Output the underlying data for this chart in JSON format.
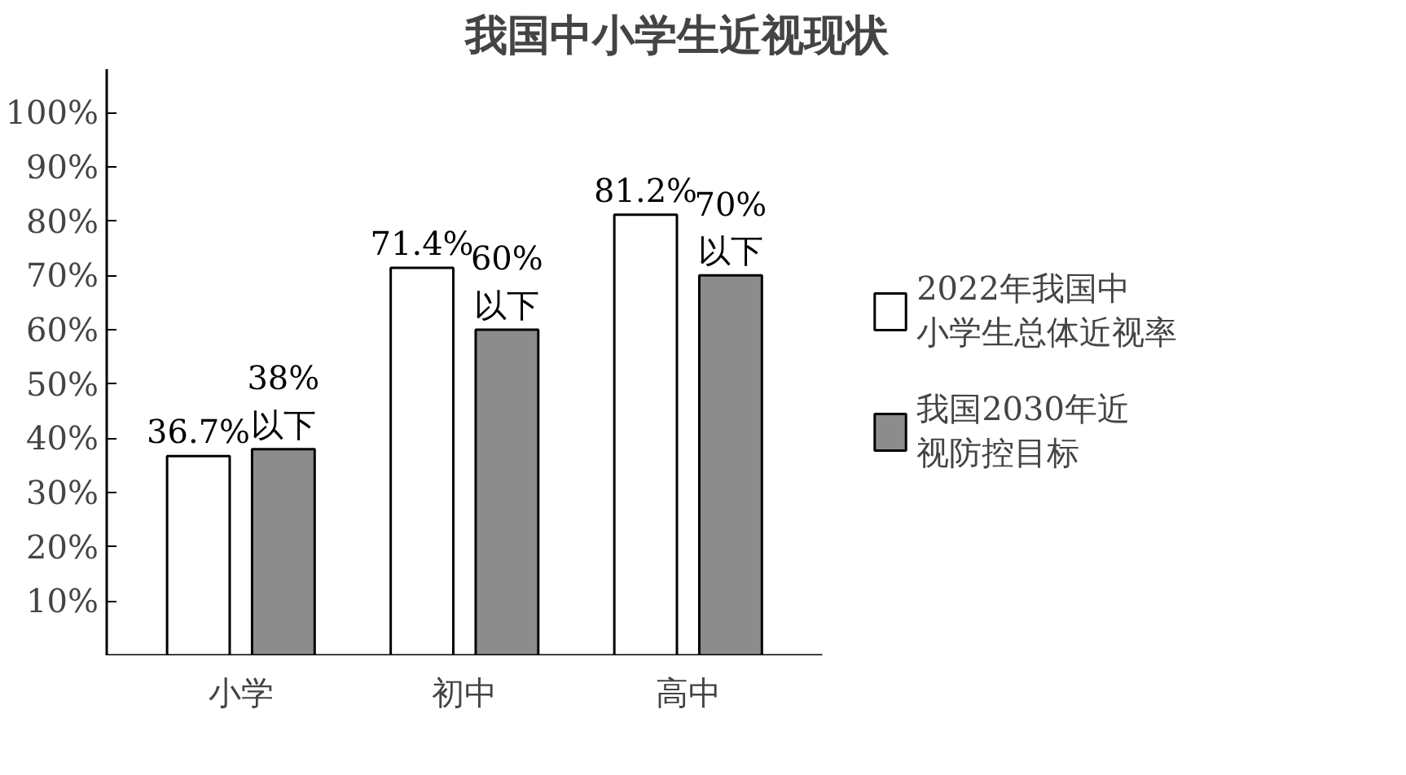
{
  "chart_data": {
    "type": "bar",
    "title": "我国中小学生近视现状",
    "categories": [
      "小学",
      "初中",
      "高中"
    ],
    "series": [
      {
        "name": "2022年我国中小学生总体近视率",
        "color": "#ffffff",
        "values": [
          36.7,
          71.4,
          81.2
        ],
        "value_labels": [
          "36.7%",
          "71.4%",
          "81.2%"
        ]
      },
      {
        "name": "我国2030年近视防控目标",
        "color": "#8c8c8c",
        "values": [
          38,
          60,
          70
        ],
        "value_labels": [
          "38%\n以下",
          "60%\n以下",
          "70%\n以下"
        ]
      }
    ],
    "ylim": [
      0,
      108
    ],
    "yticks": [
      {
        "value": 10,
        "label": "10%"
      },
      {
        "value": 20,
        "label": "20%"
      },
      {
        "value": 30,
        "label": "30%"
      },
      {
        "value": 40,
        "label": "40%"
      },
      {
        "value": 50,
        "label": "50%"
      },
      {
        "value": 60,
        "label": "60%"
      },
      {
        "value": 70,
        "label": "70%"
      },
      {
        "value": 80,
        "label": "80%"
      },
      {
        "value": 90,
        "label": "90%"
      },
      {
        "value": 100,
        "label": "100%"
      }
    ],
    "grid": false,
    "legend": "right"
  }
}
